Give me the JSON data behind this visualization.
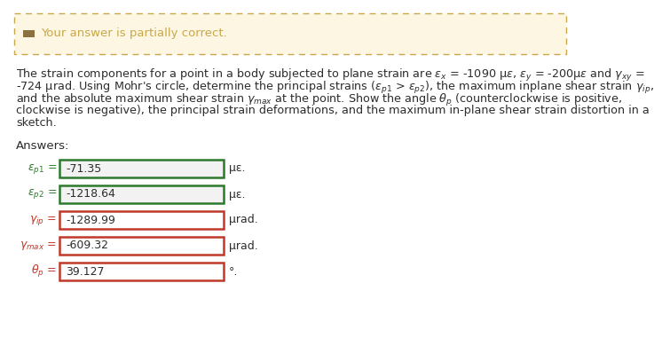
{
  "banner_bg": "#fdf6e3",
  "banner_border": "#c8a84b",
  "banner_text": "Your answer is partially correct.",
  "banner_icon_color": "#8B7040",
  "body_bg": "#ffffff",
  "txt_color": "#2c2c2c",
  "label_color_green": "#2d7a2d",
  "label_color_red": "#c0392b",
  "answers_label": "Answers:",
  "problem_lines": [
    "The strain components for a point in a body subjected to plane strain are εₛ = -1090 µε, εᵧ = -200µε and γₓᵧ =",
    "-724 µrad. Using Mohr’s circle, determine the principal strains (εₚ₁ > εₚ₂), the maximum inplane shear strain γip,",
    "and the absolute maximum shear strain γmax at the point. Show the angle θp (counterclockwise is positive,",
    "clockwise is negative), the principal strain deformations, and the maximum in-plane shear strain distortion in a",
    "sketch."
  ],
  "rows": [
    {
      "label_parts": [
        "ε",
        "p1",
        " ="
      ],
      "value": "-71.35",
      "unit": "µε.",
      "border": "#2d7a2d",
      "bg": "#f2f2f2",
      "correct": true
    },
    {
      "label_parts": [
        "ε",
        "p2",
        " ="
      ],
      "value": "-1218.64",
      "unit": "µε.",
      "border": "#2d7a2d",
      "bg": "#f2f2f2",
      "correct": true
    },
    {
      "label_parts": [
        "γ",
        "ip",
        " ="
      ],
      "value": "-1289.99",
      "unit": "µrad.",
      "border": "#c0392b",
      "bg": "#ffffff",
      "correct": false
    },
    {
      "label_parts": [
        "γ",
        "max",
        " ="
      ],
      "value": "-609.32",
      "unit": "µrad.",
      "border": "#c0392b",
      "bg": "#ffffff",
      "correct": false
    },
    {
      "label_parts": [
        "θ",
        "p",
        "="
      ],
      "value": "39.127",
      "unit": "°.",
      "border": "#c0392b",
      "bg": "#ffffff",
      "correct": false
    }
  ]
}
